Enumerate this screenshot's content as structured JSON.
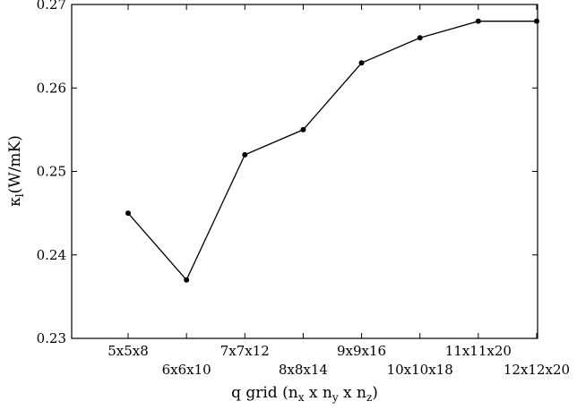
{
  "chart_data": {
    "type": "line",
    "title": "",
    "xlabel": "q grid",
    "xlabel_detail": {
      "prefix": "q grid (n",
      "sub_x": "x",
      "mid1": " x n",
      "sub_y": "y",
      "mid2": " x n",
      "sub_z": "z",
      "suffix": ")"
    },
    "ylabel": "κl(W/mK)",
    "ylabel_detail": {
      "main": "κ",
      "sub": "l",
      "rest": "(W/mK)"
    },
    "categories": [
      "5x5x8",
      "6x6x10",
      "7x7x12",
      "8x8x14",
      "9x9x16",
      "10x10x18",
      "11x11x20",
      "12x12x20"
    ],
    "series": [
      {
        "values": [
          0.245,
          0.237,
          0.252,
          0.255,
          0.263,
          0.266,
          0.268,
          0.268
        ],
        "color": "#000000"
      }
    ],
    "ylim": [
      0.23,
      0.27
    ],
    "yticks": [
      0.23,
      0.24,
      0.25,
      0.26,
      0.27
    ],
    "ytick_labels": [
      "0.23",
      "0.24",
      "0.25",
      "0.26",
      "0.27"
    ],
    "grid": false,
    "legend": "none"
  }
}
